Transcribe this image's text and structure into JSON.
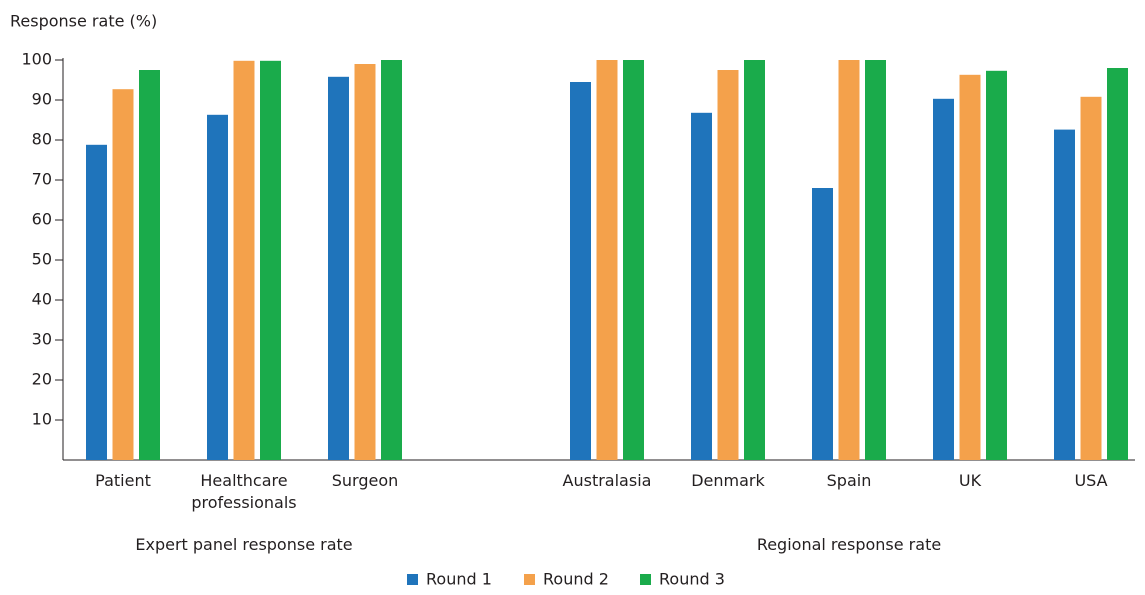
{
  "chart_data": {
    "type": "bar",
    "y_label": "Response rate (%)",
    "categories": [
      "Patient",
      "Healthcare professionals",
      "Surgeon",
      null,
      "Australasia",
      "Denmark",
      "Spain",
      "UK",
      "USA"
    ],
    "series": [
      {
        "name": "Round 1",
        "color": "#1f74bb",
        "values": [
          78.8,
          86.3,
          95.8,
          null,
          94.5,
          86.8,
          68,
          90.3,
          82.6
        ]
      },
      {
        "name": "Round 2",
        "color": "#f4a14b",
        "values": [
          92.7,
          99.8,
          99,
          null,
          100,
          97.5,
          100,
          96.3,
          90.8
        ]
      },
      {
        "name": "Round 3",
        "color": "#1aab4b",
        "values": [
          97.5,
          99.8,
          100,
          null,
          100,
          100,
          100,
          97.3,
          98
        ]
      }
    ],
    "annotations": [
      "Expert panel response rate",
      "Regional response rate"
    ],
    "ylim": [
      0,
      100
    ],
    "yticks": [
      10,
      20,
      30,
      40,
      50,
      60,
      70,
      80,
      90,
      100
    ],
    "legend": "bottom",
    "grid": false
  }
}
